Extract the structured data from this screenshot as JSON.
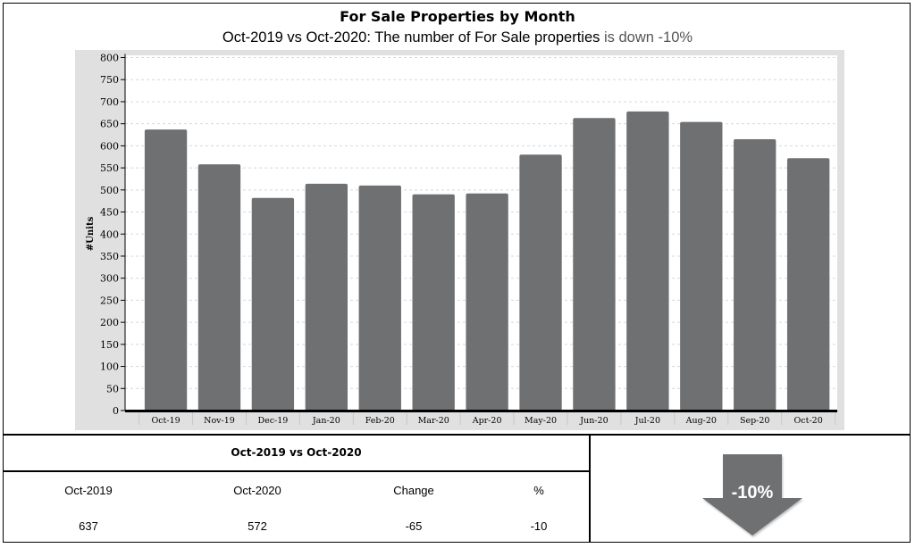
{
  "header": {
    "title": "For Sale Properties by Month",
    "subtitle_main": "Oct-2019 vs Oct-2020: The number of For Sale properties",
    "subtitle_trend": "is down -10%"
  },
  "chart_data": {
    "type": "bar",
    "categories": [
      "Oct-19",
      "Nov-19",
      "Dec-19",
      "Jan-20",
      "Feb-20",
      "Mar-20",
      "Apr-20",
      "May-20",
      "Jun-20",
      "Jul-20",
      "Aug-20",
      "Sep-20",
      "Oct-20"
    ],
    "values": [
      637,
      558,
      482,
      514,
      510,
      490,
      492,
      580,
      663,
      678,
      654,
      615,
      572
    ],
    "ylabel": "#Units",
    "ylim": [
      0,
      800
    ],
    "yticks": [
      0,
      50,
      100,
      150,
      200,
      250,
      300,
      350,
      400,
      450,
      500,
      550,
      600,
      650,
      700,
      750,
      800
    ],
    "grid": true,
    "bar_color": "#6e7072"
  },
  "comparison": {
    "title": "Oct-2019 vs Oct-2020",
    "headers": [
      "Oct-2019",
      "Oct-2020",
      "Change",
      "%"
    ],
    "values": [
      "637",
      "572",
      "-65",
      "-10"
    ]
  },
  "indicator": {
    "label": "-10%",
    "icon": "down-arrow-icon",
    "color": "#6e7072"
  }
}
